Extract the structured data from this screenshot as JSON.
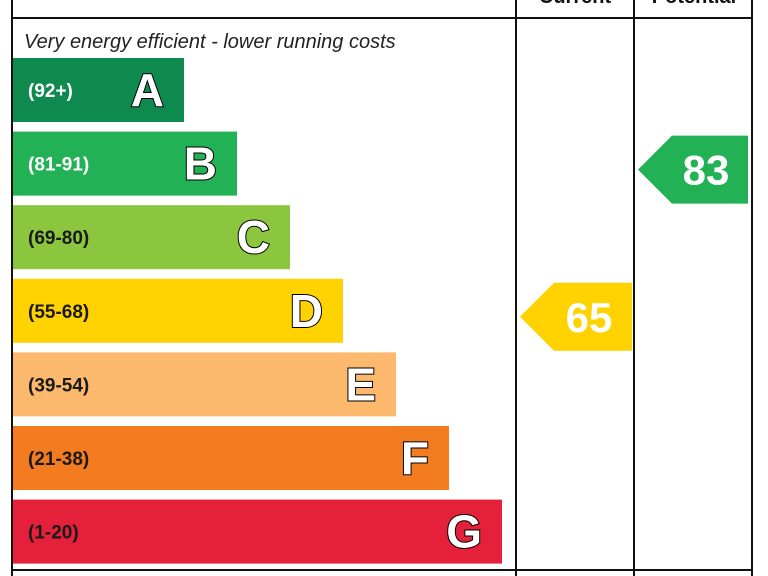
{
  "chart_data": {
    "type": "bar",
    "caption": "Very energy efficient - lower running costs",
    "columns": [
      "Current",
      "Potential"
    ],
    "bands": [
      {
        "letter": "A",
        "range": "(92+)",
        "min": 92,
        "color": "#0f8a4f",
        "range_color": "#ffffff"
      },
      {
        "letter": "B",
        "range": "(81-91)",
        "min": 81,
        "color": "#22b155",
        "range_color": "#ffffff"
      },
      {
        "letter": "C",
        "range": "(69-80)",
        "min": 69,
        "color": "#8cc63f",
        "range_color": "#1a1a1a"
      },
      {
        "letter": "D",
        "range": "(55-68)",
        "min": 55,
        "color": "#ffd200",
        "range_color": "#1a1a1a"
      },
      {
        "letter": "E",
        "range": "(39-54)",
        "min": 39,
        "color": "#fcb96e",
        "range_color": "#1a1a1a"
      },
      {
        "letter": "F",
        "range": "(21-38)",
        "min": 21,
        "color": "#f37c21",
        "range_color": "#1a1a1a"
      },
      {
        "letter": "G",
        "range": "(1-20)",
        "min": 1,
        "color": "#e5203a",
        "range_color": "#1a1a1a"
      }
    ],
    "ratings": [
      {
        "column": "Current",
        "value": 65,
        "band": "D",
        "color": "#ffd200"
      },
      {
        "column": "Potential",
        "value": 83,
        "band": "B",
        "color": "#22b155"
      }
    ]
  }
}
